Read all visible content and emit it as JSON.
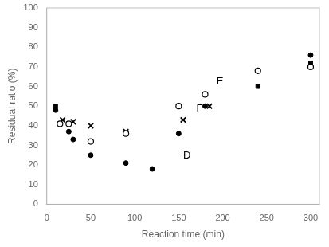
{
  "chart_data": {
    "type": "scatter",
    "xlabel": "Reaction time (min)",
    "ylabel": "Residual ratio (%)",
    "xlim": [
      0,
      310
    ],
    "ylim": [
      0,
      100
    ],
    "xticks": [
      0,
      50,
      100,
      150,
      200,
      250,
      300
    ],
    "yticks": [
      0,
      10,
      20,
      30,
      40,
      50,
      60,
      70,
      80,
      90,
      100
    ],
    "grid": false,
    "series": [
      {
        "marker": "circle",
        "color": "black",
        "x": [
          10,
          25,
          30,
          50,
          90,
          120,
          150,
          180,
          300
        ],
        "values": [
          48,
          37,
          33,
          25,
          21,
          18,
          36,
          50,
          76
        ]
      },
      {
        "marker": "open_circle",
        "color": "black",
        "x": [
          15,
          25,
          50,
          90,
          150,
          180,
          240,
          300
        ],
        "values": [
          41,
          41,
          32,
          36,
          50,
          56,
          68,
          70
        ]
      },
      {
        "marker": "x",
        "color": "black",
        "x": [
          18,
          30,
          50,
          90,
          155,
          185
        ],
        "values": [
          43,
          42,
          40,
          37,
          43,
          50
        ]
      },
      {
        "marker": "square",
        "color": "black",
        "x": [
          10,
          240,
          300
        ],
        "values": [
          50,
          60,
          72
        ]
      }
    ],
    "annotations": [
      {
        "text": "D",
        "x": 155,
        "y": 22
      },
      {
        "text": "E",
        "x": 193,
        "y": 60
      },
      {
        "text": "F",
        "x": 170,
        "y": 46
      }
    ]
  }
}
